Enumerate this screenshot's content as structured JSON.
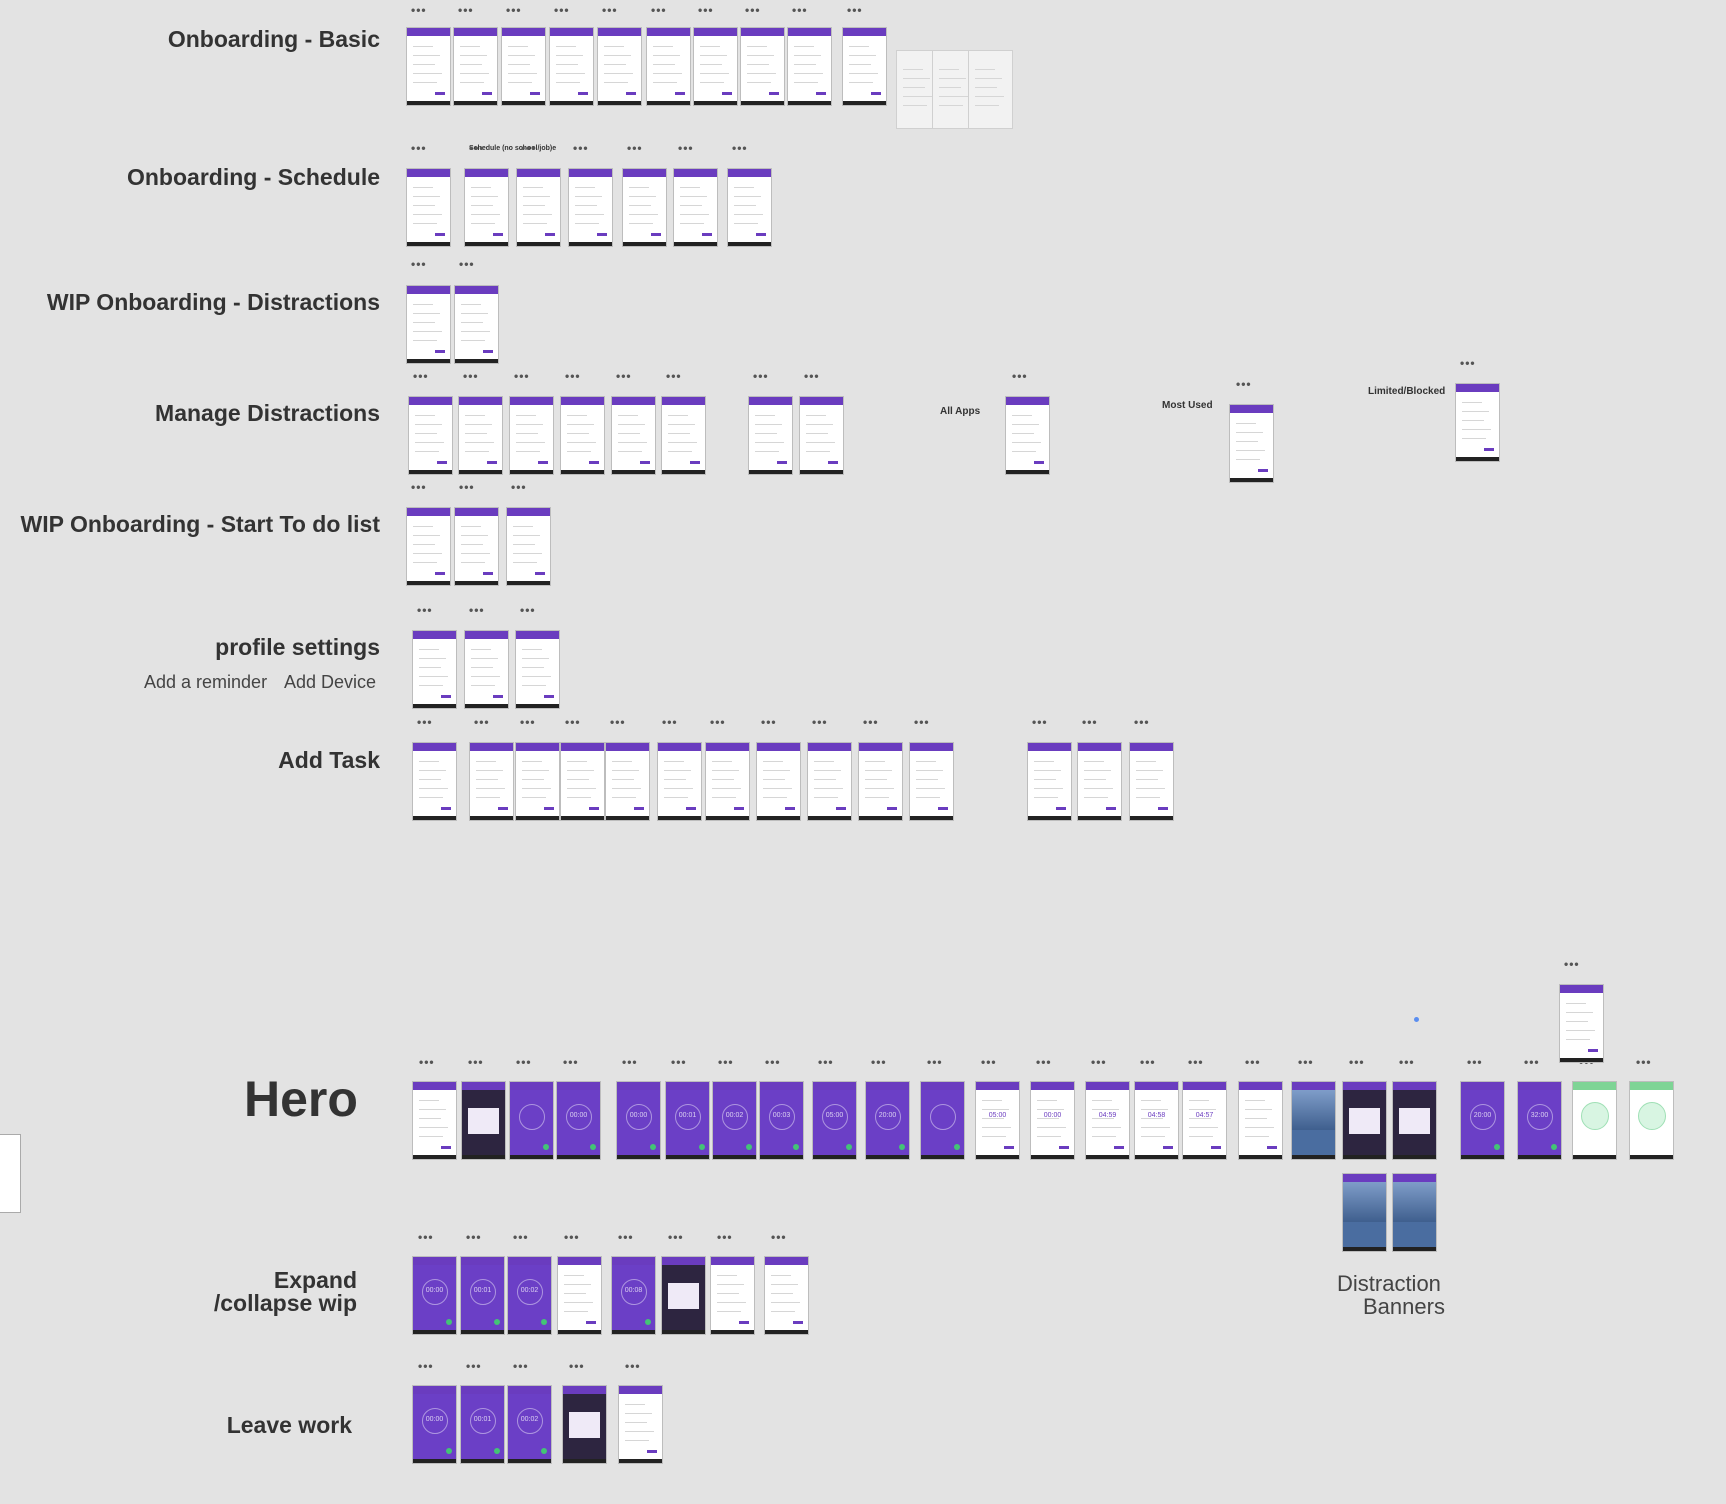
{
  "sections": {
    "onboarding_basic": "Onboarding - Basic",
    "onboarding_schedule": "Onboarding - Schedule",
    "schedule_sub": "Schedule (no school/job)e",
    "wip_distractions": "WIP Onboarding - Distractions",
    "manage_distractions": "Manage Distractions",
    "all_apps": "All Apps",
    "most_used": "Most Used",
    "limited_blocked": "Limited/Blocked",
    "wip_todo": "WIP Onboarding - Start To do list",
    "profile_settings": "profile settings",
    "add_reminder": "Add a reminder",
    "add_device": "Add Device",
    "add_task": "Add Task",
    "hero": "Hero",
    "expand_collapse_1": "Expand",
    "expand_collapse_2": "/collapse wip",
    "distraction_banners_1": "Distraction",
    "distraction_banners_2": "Banners",
    "leave_work": "Leave work"
  },
  "dots": "•••",
  "hero_timers": [
    "00:00",
    "00:01",
    "00:02",
    "00:03",
    "05:00",
    "20:00"
  ],
  "hero_timers_light": [
    "05:00",
    "00:00",
    "04:59",
    "04:58",
    "04:57"
  ],
  "hero_timers_end": [
    "20:00",
    "32:00"
  ],
  "expand_timers": [
    "00:00",
    "00:01",
    "00:02",
    "00:08"
  ],
  "leave_timers": [
    "00:00",
    "00:01",
    "00:02"
  ],
  "colors": {
    "background": "#e3e3e3",
    "primary": "#6a3cbf",
    "accent_green": "#43c476"
  }
}
